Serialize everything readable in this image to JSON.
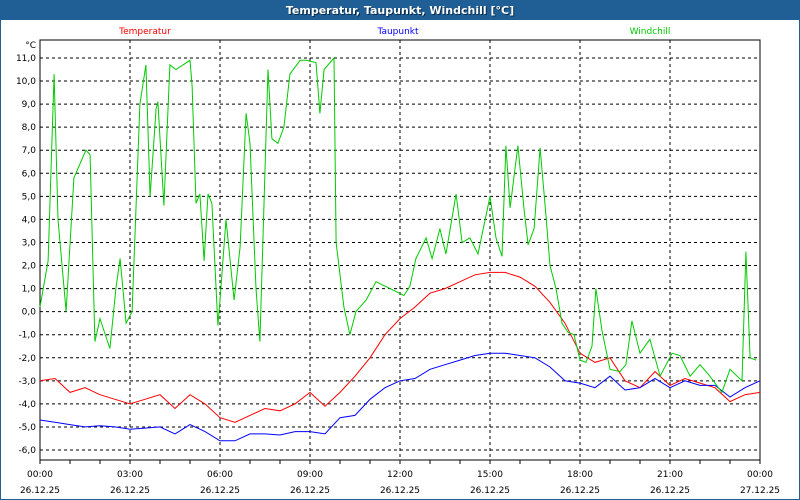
{
  "window": {
    "title": "Temperatur, Taupunkt, Windchill [°C]"
  },
  "chart_data": {
    "type": "line",
    "title": "Temperatur, Taupunkt, Windchill [°C]",
    "ylabel": "°C",
    "ylim": [
      -6.5,
      11.5
    ],
    "xlim": [
      0,
      24
    ],
    "y_ticks": [
      11,
      10,
      9,
      8,
      7,
      6,
      5,
      4,
      3,
      2,
      1,
      0,
      -1,
      -2,
      -3,
      -4,
      -5,
      -6
    ],
    "y_tick_labels": [
      "11,0",
      "10,0",
      "9,0",
      "8,0",
      "7,0",
      "6,0",
      "5,0",
      "4,0",
      "3,0",
      "2,0",
      "1,0",
      "0,0",
      "-1,0",
      "-2,0",
      "-3,0",
      "-4,0",
      "-5,0",
      "-6,0"
    ],
    "x_ticks": [
      0,
      3,
      6,
      9,
      12,
      15,
      18,
      21,
      24
    ],
    "x_tick_labels": [
      {
        "time": "00:00",
        "date": "26.12.25"
      },
      {
        "time": "03:00",
        "date": "26.12.25"
      },
      {
        "time": "06:00",
        "date": "26.12.25"
      },
      {
        "time": "09:00",
        "date": "26.12.25"
      },
      {
        "time": "12:00",
        "date": "26.12.25"
      },
      {
        "time": "15:00",
        "date": "26.12.25"
      },
      {
        "time": "18:00",
        "date": "26.12.25"
      },
      {
        "time": "21:00",
        "date": "26.12.25"
      },
      {
        "time": "00:00",
        "date": "27.12.25"
      }
    ],
    "grid": true,
    "legend_position": "top",
    "series": [
      {
        "name": "Temperatur",
        "color": "#ff0000",
        "x_step_hours": 0.5,
        "values": [
          -3.0,
          -2.9,
          -3.5,
          -3.3,
          -3.6,
          -3.8,
          -4.0,
          -3.8,
          -3.6,
          -4.2,
          -3.6,
          -4.0,
          -4.6,
          -4.8,
          -4.5,
          -4.2,
          -4.3,
          -4.0,
          -3.5,
          -4.1,
          -3.5,
          -2.8,
          -2.0,
          -1.0,
          -0.3,
          0.2,
          0.8,
          1.0,
          1.3,
          1.6,
          1.7,
          1.7,
          1.5,
          1.1,
          0.4,
          -0.5,
          -1.8,
          -2.2,
          -2.0,
          -3.0,
          -3.3,
          -2.6,
          -3.2,
          -2.9,
          -3.1,
          -3.3,
          -3.9,
          -3.6,
          -3.5
        ]
      },
      {
        "name": "Taupunkt",
        "color": "#0000ff",
        "x_step_hours": 0.5,
        "values": [
          -4.7,
          -4.8,
          -4.9,
          -5.0,
          -4.95,
          -5.0,
          -5.1,
          -5.05,
          -5.0,
          -5.3,
          -4.9,
          -5.2,
          -5.6,
          -5.6,
          -5.3,
          -5.3,
          -5.35,
          -5.2,
          -5.2,
          -5.3,
          -4.6,
          -4.5,
          -3.8,
          -3.3,
          -3.0,
          -2.9,
          -2.5,
          -2.3,
          -2.1,
          -1.9,
          -1.8,
          -1.8,
          -1.9,
          -2.0,
          -2.4,
          -3.0,
          -3.1,
          -3.3,
          -2.8,
          -3.4,
          -3.3,
          -2.9,
          -3.3,
          -3.0,
          -3.2,
          -3.2,
          -3.7,
          -3.3,
          -3.0
        ]
      },
      {
        "name": "Windchill",
        "color": "#00cc00",
        "points": [
          [
            0,
            0.2
          ],
          [
            0.27,
            2.2
          ],
          [
            0.47,
            10.3
          ],
          [
            0.6,
            4
          ],
          [
            0.87,
            0
          ],
          [
            1.13,
            5.8
          ],
          [
            1.53,
            7
          ],
          [
            1.67,
            6.8
          ],
          [
            1.83,
            -1.3
          ],
          [
            2,
            -0.3
          ],
          [
            2.33,
            -1.6
          ],
          [
            2.53,
            1
          ],
          [
            2.67,
            2.3
          ],
          [
            2.87,
            -0.5
          ],
          [
            3.07,
            0
          ],
          [
            3.33,
            9
          ],
          [
            3.53,
            10.7
          ],
          [
            3.67,
            5
          ],
          [
            3.87,
            8.8
          ],
          [
            3.93,
            9.1
          ],
          [
            4.13,
            4.6
          ],
          [
            4.33,
            10.7
          ],
          [
            4.53,
            10.5
          ],
          [
            5,
            10.9
          ],
          [
            5.07,
            9.8
          ],
          [
            5.2,
            4.7
          ],
          [
            5.33,
            5.1
          ],
          [
            5.47,
            2.2
          ],
          [
            5.6,
            5.1
          ],
          [
            5.73,
            4.7
          ],
          [
            5.93,
            -0.6
          ],
          [
            6,
            0.5
          ],
          [
            6.2,
            4
          ],
          [
            6.47,
            0.5
          ],
          [
            6.67,
            2.8
          ],
          [
            6.87,
            8.6
          ],
          [
            7,
            7.3
          ],
          [
            7.2,
            1.0
          ],
          [
            7.33,
            -1.3
          ],
          [
            7.6,
            10.5
          ],
          [
            7.73,
            7.5
          ],
          [
            7.93,
            7.3
          ],
          [
            8.13,
            8.0
          ],
          [
            8.33,
            10.3
          ],
          [
            8.67,
            10.9
          ],
          [
            8.87,
            10.9
          ],
          [
            9.2,
            10.8
          ],
          [
            9.33,
            8.6
          ],
          [
            9.47,
            10.5
          ],
          [
            9.8,
            11.0
          ],
          [
            9.87,
            3
          ],
          [
            10.13,
            0.2
          ],
          [
            10.33,
            -1
          ],
          [
            10.53,
            0
          ],
          [
            10.87,
            0.5
          ],
          [
            11.2,
            1.3
          ],
          [
            11.67,
            1.0
          ],
          [
            12.13,
            0.7
          ],
          [
            12.33,
            1.1
          ],
          [
            12.53,
            2.3
          ],
          [
            12.87,
            3.2
          ],
          [
            13.07,
            2.3
          ],
          [
            13.33,
            3.6
          ],
          [
            13.53,
            2.5
          ],
          [
            13.87,
            5.1
          ],
          [
            14.07,
            3
          ],
          [
            14.33,
            3.2
          ],
          [
            14.6,
            2.5
          ],
          [
            15,
            5
          ],
          [
            15.2,
            3.2
          ],
          [
            15.4,
            2.4
          ],
          [
            15.53,
            7.2
          ],
          [
            15.67,
            4.5
          ],
          [
            15.93,
            7.2
          ],
          [
            16.13,
            4.5
          ],
          [
            16.27,
            2.9
          ],
          [
            16.47,
            3.6
          ],
          [
            16.67,
            7.1
          ],
          [
            16.87,
            4.1
          ],
          [
            17,
            2
          ],
          [
            17.2,
            1
          ],
          [
            17.4,
            -0.5
          ],
          [
            17.6,
            -0.9
          ],
          [
            17.8,
            -1
          ],
          [
            18,
            -2.1
          ],
          [
            18.2,
            -2.2
          ],
          [
            18.4,
            -1.5
          ],
          [
            18.53,
            1.0
          ],
          [
            18.73,
            -0.8
          ],
          [
            19,
            -2.5
          ],
          [
            19.33,
            -2.6
          ],
          [
            19.53,
            -2.3
          ],
          [
            19.73,
            -0.4
          ],
          [
            20,
            -1.8
          ],
          [
            20.33,
            -1.2
          ],
          [
            20.67,
            -2.8
          ],
          [
            21.07,
            -1.8
          ],
          [
            21.33,
            -1.9
          ],
          [
            21.67,
            -2.8
          ],
          [
            22,
            -2.3
          ],
          [
            22.33,
            -2.8
          ],
          [
            22.73,
            -3.5
          ],
          [
            23,
            -2.5
          ],
          [
            23.4,
            -3.0
          ],
          [
            23.53,
            2.6
          ],
          [
            23.67,
            -2.0
          ],
          [
            23.87,
            -2.1
          ]
        ]
      }
    ]
  }
}
